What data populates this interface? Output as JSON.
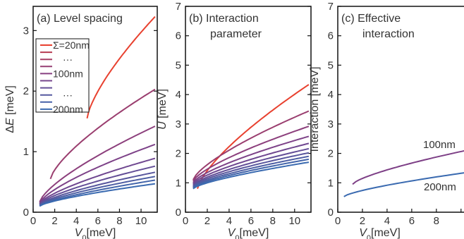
{
  "chart_data": [
    {
      "type": "line",
      "title": "(a) Level spacing",
      "xlabel": "V0[meV]",
      "ylabel": "ΔE [meV]",
      "xlim": [
        0,
        11.5
      ],
      "ylim": [
        0,
        3.4
      ],
      "xticks": [
        0,
        2,
        4,
        6,
        8,
        10
      ],
      "yticks": [
        0,
        1,
        2,
        3
      ],
      "legend": {
        "placement": "top-left",
        "entries": [
          "Σ=20nm",
          "···",
          "100nm",
          "···",
          "200nm"
        ],
        "colors": [
          "#e8412f",
          "#b63b50",
          "#a63d63",
          "#963e72",
          "#873f80",
          "#76468d",
          "#644f97",
          "#55589f",
          "#4661a8",
          "#3a6ab0"
        ]
      },
      "series": [
        {
          "color": "#e8412f",
          "x": [
            5.0,
            11.3
          ],
          "y": [
            1.55,
            3.23
          ]
        },
        {
          "color": "#9a3e6f",
          "x": [
            1.6,
            11.3
          ],
          "y": [
            0.55,
            2.03
          ]
        },
        {
          "color": "#8c3f7c",
          "x": [
            0.6,
            11.3
          ],
          "y": [
            0.17,
            1.42
          ]
        },
        {
          "color": "#7d4288",
          "x": [
            0.6,
            11.3
          ],
          "y": [
            0.15,
            1.12
          ]
        },
        {
          "color": "#6f4790",
          "x": [
            0.6,
            11.3
          ],
          "y": [
            0.14,
            0.89
          ]
        },
        {
          "color": "#634e97",
          "x": [
            0.6,
            11.3
          ],
          "y": [
            0.13,
            0.76
          ]
        },
        {
          "color": "#58569d",
          "x": [
            0.6,
            11.3
          ],
          "y": [
            0.12,
            0.66
          ]
        },
        {
          "color": "#4d5ea3",
          "x": [
            0.6,
            11.3
          ],
          "y": [
            0.11,
            0.59
          ]
        },
        {
          "color": "#4365aa",
          "x": [
            0.6,
            11.3
          ],
          "y": [
            0.1,
            0.53
          ]
        },
        {
          "color": "#3a6ab0",
          "x": [
            0.6,
            11.3
          ],
          "y": [
            0.1,
            0.47
          ]
        }
      ]
    },
    {
      "type": "line",
      "title": "(b) Interaction parameter",
      "title_lines": [
        "(b) Interaction",
        "parameter"
      ],
      "xlabel": "V0[meV]",
      "ylabel": "U [meV]",
      "xlim": [
        0,
        11.5
      ],
      "ylim": [
        0,
        7
      ],
      "xticks": [
        0,
        2,
        4,
        6,
        8,
        10
      ],
      "yticks": [
        0,
        1,
        2,
        3,
        4,
        5,
        6,
        7
      ],
      "series": [
        {
          "color": "#e8412f",
          "x": [
            1.1,
            11.3
          ],
          "y": [
            0.8,
            4.34
          ]
        },
        {
          "color": "#9a3e6f",
          "x": [
            0.7,
            11.3
          ],
          "y": [
            1.1,
            3.44
          ]
        },
        {
          "color": "#8c3f7c",
          "x": [
            0.7,
            11.3
          ],
          "y": [
            1.05,
            2.92
          ]
        },
        {
          "color": "#7d4288",
          "x": [
            0.7,
            11.3
          ],
          "y": [
            1.0,
            2.58
          ]
        },
        {
          "color": "#6f4790",
          "x": [
            0.7,
            11.3
          ],
          "y": [
            0.96,
            2.34
          ]
        },
        {
          "color": "#634e97",
          "x": [
            0.7,
            11.3
          ],
          "y": [
            0.92,
            2.16
          ]
        },
        {
          "color": "#58569d",
          "x": [
            0.7,
            11.3
          ],
          "y": [
            0.89,
            2.02
          ]
        },
        {
          "color": "#4d5ea3",
          "x": [
            0.7,
            11.3
          ],
          "y": [
            0.86,
            1.9
          ]
        },
        {
          "color": "#4365aa",
          "x": [
            0.7,
            11.3
          ],
          "y": [
            0.83,
            1.8
          ]
        },
        {
          "color": "#3a6ab0",
          "x": [
            0.7,
            11.3
          ],
          "y": [
            0.8,
            1.7
          ]
        }
      ]
    },
    {
      "type": "line",
      "title": "(c) Effective interaction",
      "title_lines": [
        "(c) Effective",
        "interaction"
      ],
      "xlabel": "V0[meV]",
      "ylabel": "Interaction [meV]",
      "xlim": [
        0,
        11.5
      ],
      "ylim": [
        0,
        7
      ],
      "xticks": [
        0,
        2,
        4,
        6,
        8,
        10
      ],
      "yticks": [
        0,
        1,
        2,
        3,
        4,
        5,
        6,
        7
      ],
      "series": [
        {
          "name": "100nm",
          "color": "#7d3f86",
          "x": [
            1.2,
            11.3
          ],
          "y": [
            0.95,
            2.18
          ]
        },
        {
          "name": "200nm",
          "color": "#3a6ab0",
          "x": [
            0.5,
            11.3
          ],
          "y": [
            0.53,
            1.4
          ]
        }
      ]
    }
  ]
}
